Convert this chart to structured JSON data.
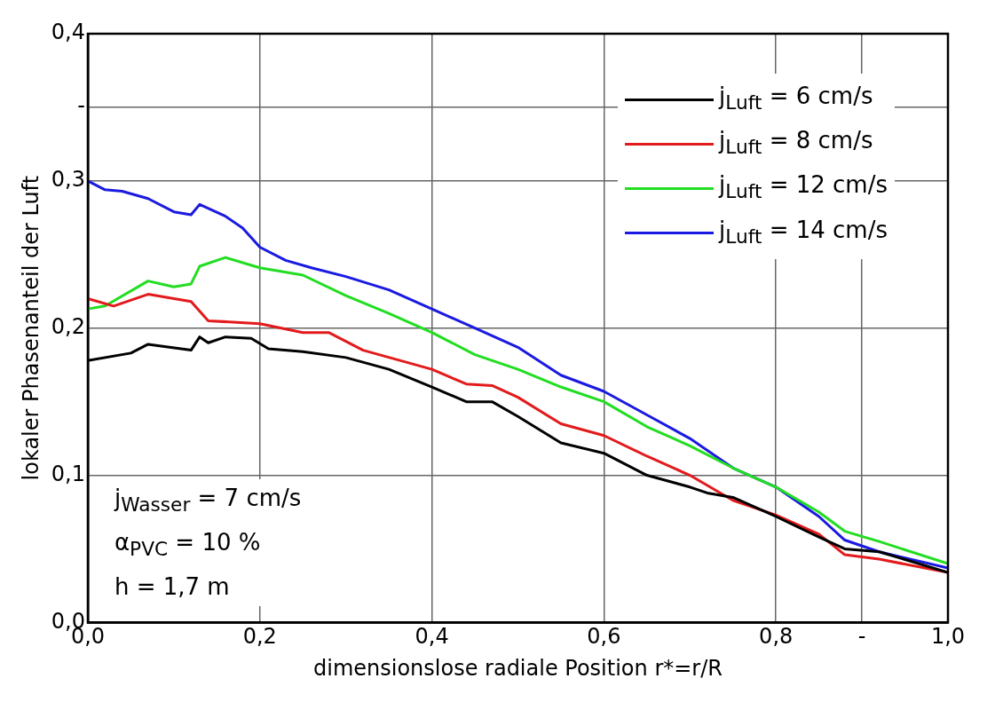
{
  "chart_data": {
    "type": "line",
    "xlabel": "dimensionslose radiale Position r*=r/R",
    "ylabel": "lokaler Phasenanteil der Luft",
    "xlim": [
      0,
      1
    ],
    "ylim": [
      0,
      0.4
    ],
    "xticks": [
      {
        "value": 0,
        "label": "0,0"
      },
      {
        "value": 0.2,
        "label": "0,2"
      },
      {
        "value": 0.4,
        "label": "0,4"
      },
      {
        "value": 0.6,
        "label": "0,6"
      },
      {
        "value": 0.8,
        "label": "0,8"
      },
      {
        "value": 0.9,
        "label": "-"
      },
      {
        "value": 1,
        "label": "1,0"
      }
    ],
    "yticks": [
      {
        "value": 0,
        "label": "0,0"
      },
      {
        "value": 0.1,
        "label": "0,1"
      },
      {
        "value": 0.2,
        "label": "0,2"
      },
      {
        "value": 0.3,
        "label": "0,3"
      },
      {
        "value": 0.35,
        "label": "-"
      },
      {
        "value": 0.4,
        "label": "0,4"
      }
    ],
    "grid": true,
    "legend": "top right",
    "line_style": "solid",
    "marker": "none",
    "annotations": [
      "j$_{Wasser}$ = 7 cm/s",
      "α$_{PVC}$ = 10 %",
      "h = 1,7 m"
    ],
    "series": [
      {
        "name": "j$_{Luft}$ = 6 cm/s",
        "color": "#000000",
        "x": [
          0,
          0.05,
          0.07,
          0.12,
          0.13,
          0.14,
          0.16,
          0.19,
          0.21,
          0.25,
          0.3,
          0.35,
          0.4,
          0.44,
          0.47,
          0.5,
          0.55,
          0.6,
          0.65,
          0.7,
          0.72,
          0.75,
          0.8,
          0.85,
          0.88,
          0.92,
          1.0
        ],
        "values": [
          0.178,
          0.183,
          0.189,
          0.185,
          0.194,
          0.19,
          0.194,
          0.193,
          0.186,
          0.184,
          0.18,
          0.172,
          0.16,
          0.15,
          0.15,
          0.14,
          0.122,
          0.115,
          0.1,
          0.092,
          0.088,
          0.085,
          0.072,
          0.058,
          0.05,
          0.048,
          0.034
        ]
      },
      {
        "name": "j$_{Luft}$ = 8 cm/s",
        "color": "#e31a1c",
        "x": [
          0,
          0.03,
          0.07,
          0.12,
          0.14,
          0.2,
          0.25,
          0.28,
          0.32,
          0.4,
          0.44,
          0.47,
          0.5,
          0.55,
          0.6,
          0.65,
          0.7,
          0.75,
          0.8,
          0.85,
          0.88,
          0.92,
          1.0
        ],
        "values": [
          0.22,
          0.215,
          0.223,
          0.218,
          0.205,
          0.203,
          0.197,
          0.197,
          0.185,
          0.172,
          0.162,
          0.161,
          0.153,
          0.135,
          0.127,
          0.113,
          0.1,
          0.083,
          0.073,
          0.06,
          0.046,
          0.043,
          0.034
        ]
      },
      {
        "name": "j$_{Luft}$ = 12 cm/s",
        "color": "#22dd22",
        "x": [
          0,
          0.02,
          0.07,
          0.1,
          0.12,
          0.13,
          0.16,
          0.2,
          0.25,
          0.3,
          0.35,
          0.4,
          0.45,
          0.5,
          0.55,
          0.6,
          0.65,
          0.7,
          0.75,
          0.8,
          0.85,
          0.88,
          0.92,
          1.0
        ],
        "values": [
          0.213,
          0.215,
          0.232,
          0.228,
          0.23,
          0.242,
          0.248,
          0.241,
          0.236,
          0.222,
          0.21,
          0.197,
          0.182,
          0.172,
          0.16,
          0.15,
          0.133,
          0.12,
          0.105,
          0.092,
          0.075,
          0.062,
          0.055,
          0.04
        ]
      },
      {
        "name": "j$_{Luft}$ = 14 cm/s",
        "color": "#1a1ae0",
        "x": [
          0,
          0.02,
          0.04,
          0.07,
          0.1,
          0.12,
          0.13,
          0.16,
          0.18,
          0.2,
          0.23,
          0.26,
          0.3,
          0.35,
          0.4,
          0.45,
          0.5,
          0.55,
          0.6,
          0.65,
          0.7,
          0.75,
          0.8,
          0.85,
          0.88,
          0.92,
          1.0
        ],
        "values": [
          0.3,
          0.294,
          0.293,
          0.288,
          0.279,
          0.277,
          0.284,
          0.276,
          0.268,
          0.255,
          0.246,
          0.241,
          0.235,
          0.226,
          0.213,
          0.2,
          0.187,
          0.168,
          0.157,
          0.141,
          0.125,
          0.105,
          0.092,
          0.072,
          0.056,
          0.048,
          0.037
        ]
      }
    ]
  }
}
